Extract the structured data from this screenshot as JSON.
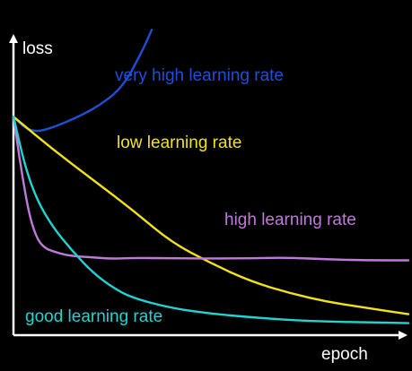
{
  "chart_data": {
    "type": "line",
    "title": "",
    "xlabel": "epoch",
    "ylabel": "loss",
    "grid": false,
    "legend": "inline labels",
    "xlim": [
      0,
      100
    ],
    "ylim": [
      0,
      100
    ],
    "series": [
      {
        "name": "very high learning rate",
        "color": "#1f4fd6",
        "x": [
          0,
          3,
          6,
          9,
          13,
          18,
          22,
          26,
          29,
          31,
          33,
          35
        ],
        "y": [
          73,
          69,
          68,
          69,
          71,
          74,
          77,
          81,
          86,
          91,
          96,
          102
        ]
      },
      {
        "name": "low learning rate",
        "color": "#f2e21c",
        "x": [
          0,
          10,
          20,
          30,
          40,
          50,
          60,
          70,
          80,
          90,
          100
        ],
        "y": [
          73,
          62,
          52,
          42,
          31,
          24,
          18,
          14,
          11,
          9,
          7
        ]
      },
      {
        "name": "high learning rate",
        "color": "#c07ad9",
        "x": [
          0,
          2,
          4,
          6,
          8,
          10,
          14,
          20,
          25,
          30,
          40,
          50,
          60,
          70,
          80,
          90,
          100
        ],
        "y": [
          73,
          55,
          40,
          32,
          29,
          28,
          26.5,
          26,
          25.5,
          25.8,
          25.7,
          25.6,
          25.7,
          25.9,
          25.3,
          25,
          25
        ]
      },
      {
        "name": "good learning rate",
        "color": "#22d3d3",
        "x": [
          0,
          3,
          6,
          10,
          15,
          20,
          25,
          30,
          40,
          50,
          60,
          70,
          80,
          90,
          100
        ],
        "y": [
          73,
          56,
          45,
          36,
          28,
          21,
          16,
          12.5,
          9,
          7.2,
          6,
          5,
          4.5,
          4.3,
          4
        ]
      }
    ]
  }
}
